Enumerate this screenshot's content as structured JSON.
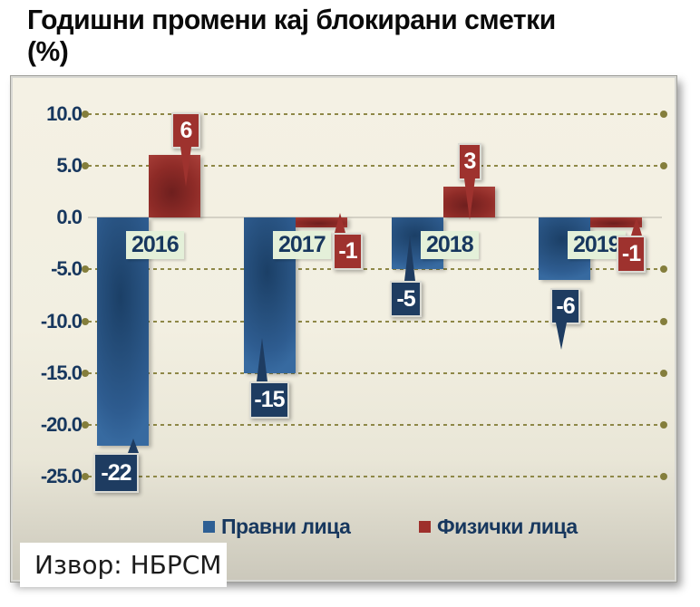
{
  "title": {
    "line1": "Годишни промени кај блокирани сметки",
    "line2": "(%)"
  },
  "source": "Извор: НБРСМ",
  "colors": {
    "blue_bar": "#2E5F94",
    "red_bar": "#9E2F2B",
    "blue_callout_box": "#1E3C61",
    "red_callout_box": "#9E322E",
    "category_label_bg": "#E4F0D9",
    "axis_text": "#17375E",
    "gridline": "#8E8847",
    "grid_dot": "#847E3C",
    "zero_line": "#D4D1C5",
    "panel_bg_top": "#F4F1E4",
    "panel_bg_bottom": "#CBC8BB"
  },
  "chart_data": {
    "type": "bar",
    "title": "Годишни промени кај блокирани сметки (%)",
    "categories": [
      "2016",
      "2017",
      "2018",
      "2019"
    ],
    "series": [
      {
        "name": "Правни лица",
        "color": "#2E5F94",
        "values": [
          -22,
          -15,
          -5,
          -6
        ]
      },
      {
        "name": "Физички лица",
        "color": "#9E2F2B",
        "values": [
          6,
          -1,
          3,
          -1
        ]
      }
    ],
    "data_labels": [
      [
        "-22",
        "-15",
        "-5",
        "-6"
      ],
      [
        "6",
        "-1",
        "3",
        "-1"
      ]
    ],
    "ytick_labels": [
      "10.0",
      "5.0",
      "0.0",
      "-5.0",
      "-10.0",
      "-15.0",
      "-20.0",
      "-25.0"
    ],
    "ylim": [
      -27.5,
      12
    ],
    "xlabel": "",
    "ylabel": "",
    "grid": "horizontal dashed olive lines with round end dots; solid zero line",
    "legend_position": "bottom"
  }
}
